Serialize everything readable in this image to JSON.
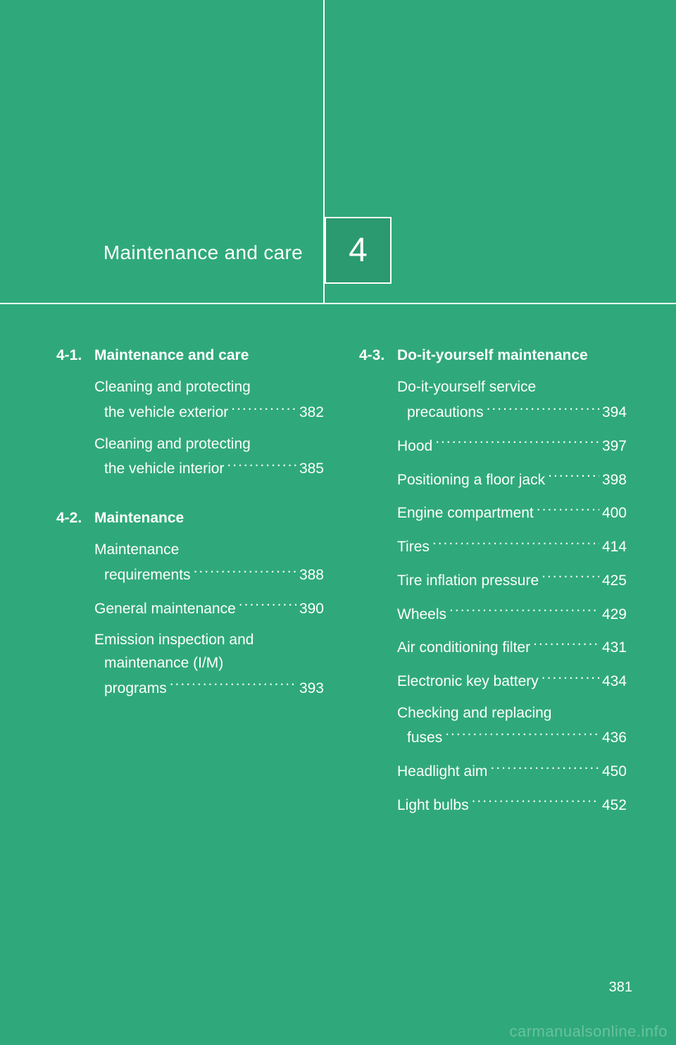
{
  "colors": {
    "page_bg": "#2fa97b",
    "box_bg": "#2b9a70",
    "rule": "#ffffff",
    "text": "#ffffff",
    "watermark": "rgba(255,255,255,0.28)"
  },
  "typography": {
    "title_fontsize_pt": 21,
    "body_fontsize_pt": 16,
    "chapnum_fontsize_pt": 36
  },
  "chapter": {
    "number": "4",
    "title": "Maintenance and care"
  },
  "page_number": "381",
  "watermark": "carmanualsonline.info",
  "sections": [
    {
      "col": 0,
      "num": "4-1.",
      "title": "Maintenance and care",
      "entries": [
        {
          "lines": [
            "Cleaning and protecting"
          ],
          "last": "the vehicle exterior",
          "indent": true,
          "page": "382"
        },
        {
          "lines": [
            "Cleaning and protecting"
          ],
          "last": "the vehicle interior",
          "indent": true,
          "page": "385"
        }
      ]
    },
    {
      "col": 0,
      "num": "4-2.",
      "title": "Maintenance",
      "entries": [
        {
          "lines": [
            "Maintenance"
          ],
          "last": "requirements",
          "indent": true,
          "page": "388"
        },
        {
          "lines": [],
          "last": "General maintenance",
          "indent": false,
          "page": "390"
        },
        {
          "lines": [
            "Emission inspection and",
            "maintenance (I/M)"
          ],
          "last": "programs",
          "indent": true,
          "page": "393"
        }
      ]
    },
    {
      "col": 1,
      "num": "4-3.",
      "title": "Do-it-yourself maintenance",
      "entries": [
        {
          "lines": [
            "Do-it-yourself service"
          ],
          "last": "precautions",
          "indent": true,
          "page": "394"
        },
        {
          "lines": [],
          "last": "Hood",
          "indent": false,
          "page": "397"
        },
        {
          "lines": [],
          "last": "Positioning a floor jack",
          "indent": false,
          "page": "398"
        },
        {
          "lines": [],
          "last": "Engine compartment",
          "indent": false,
          "page": "400"
        },
        {
          "lines": [],
          "last": "Tires",
          "indent": false,
          "page": "414"
        },
        {
          "lines": [],
          "last": "Tire inflation pressure",
          "indent": false,
          "page": "425"
        },
        {
          "lines": [],
          "last": "Wheels",
          "indent": false,
          "page": "429"
        },
        {
          "lines": [],
          "last": "Air conditioning filter",
          "indent": false,
          "page": "431"
        },
        {
          "lines": [],
          "last": "Electronic key battery",
          "indent": false,
          "page": "434"
        },
        {
          "lines": [
            "Checking and replacing"
          ],
          "last": "fuses",
          "indent": true,
          "page": "436"
        },
        {
          "lines": [],
          "last": "Headlight aim",
          "indent": false,
          "page": "450"
        },
        {
          "lines": [],
          "last": "Light bulbs",
          "indent": false,
          "page": "452"
        }
      ]
    }
  ]
}
